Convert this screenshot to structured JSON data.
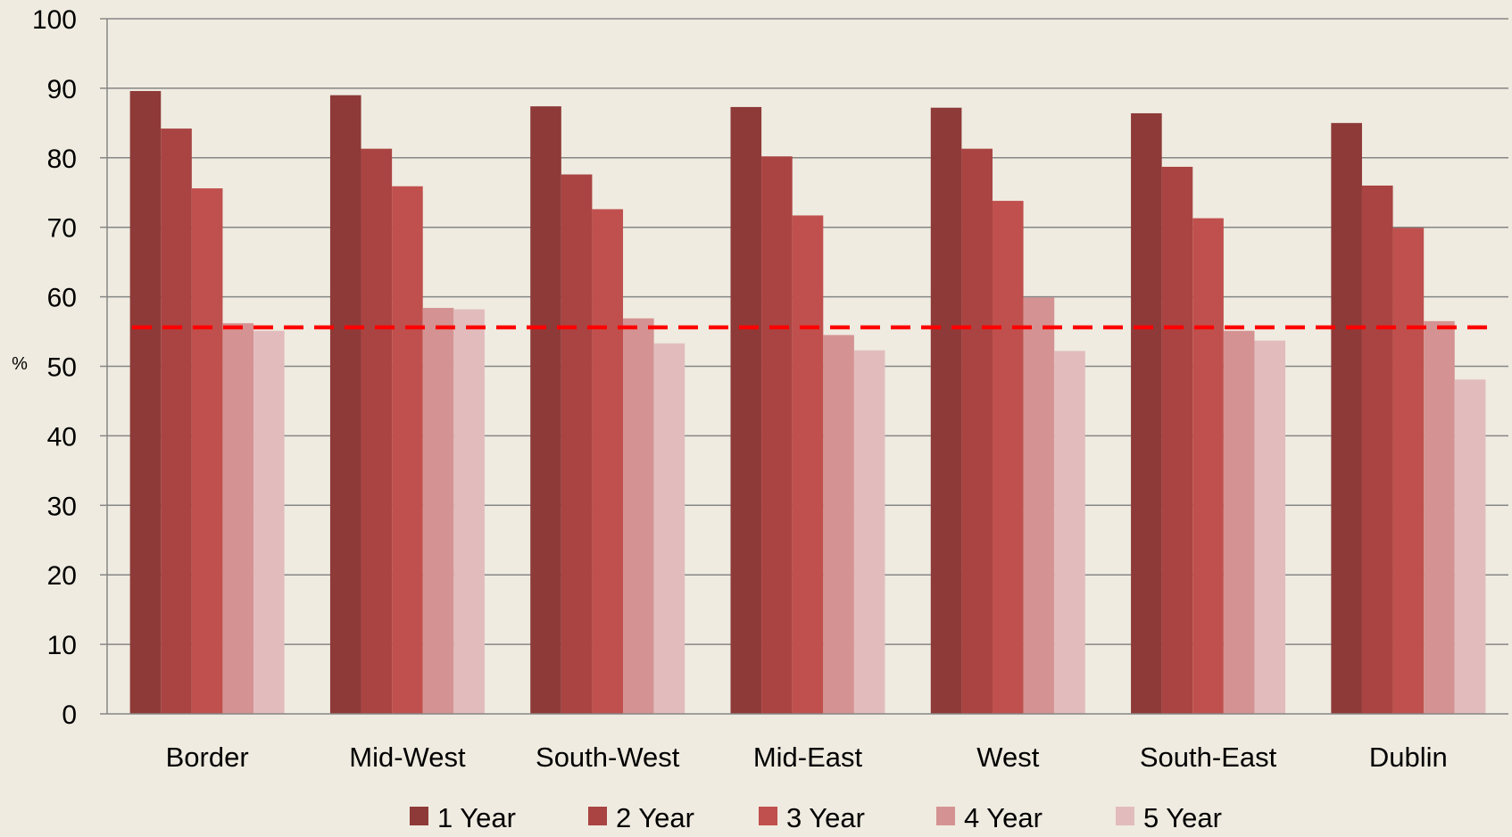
{
  "chart_data": {
    "type": "bar",
    "categories": [
      "Border",
      "Mid-West",
      "South-West",
      "Mid-East",
      "West",
      "South-East",
      "Dublin"
    ],
    "series": [
      {
        "name": "1 Year",
        "color": "#8E3A38",
        "values": [
          89.6,
          89.0,
          87.4,
          87.3,
          87.2,
          86.4,
          85.0
        ]
      },
      {
        "name": "2 Year",
        "color": "#A94443",
        "values": [
          84.2,
          81.3,
          77.6,
          80.2,
          81.3,
          78.7,
          76.0
        ]
      },
      {
        "name": "3 Year",
        "color": "#C0504D",
        "values": [
          75.6,
          75.9,
          72.6,
          71.7,
          73.8,
          71.3,
          69.9
        ]
      },
      {
        "name": "4 Year",
        "color": "#D49392",
        "values": [
          56.2,
          58.4,
          56.9,
          54.5,
          59.9,
          55.1,
          56.5
        ]
      },
      {
        "name": "5 Year",
        "color": "#E2BCBD",
        "values": [
          55.1,
          58.2,
          53.3,
          52.3,
          52.2,
          53.7,
          48.1
        ]
      }
    ],
    "reference_line": {
      "value": 55.6,
      "color": "#FF0000",
      "style": "dashed"
    },
    "ylabel": "%",
    "ylim": [
      0,
      100
    ],
    "yticks": [
      "0",
      "10",
      "20",
      "30",
      "40",
      "50",
      "60",
      "70",
      "80",
      "90",
      "100"
    ],
    "grid": true,
    "legend_position": "bottom"
  }
}
